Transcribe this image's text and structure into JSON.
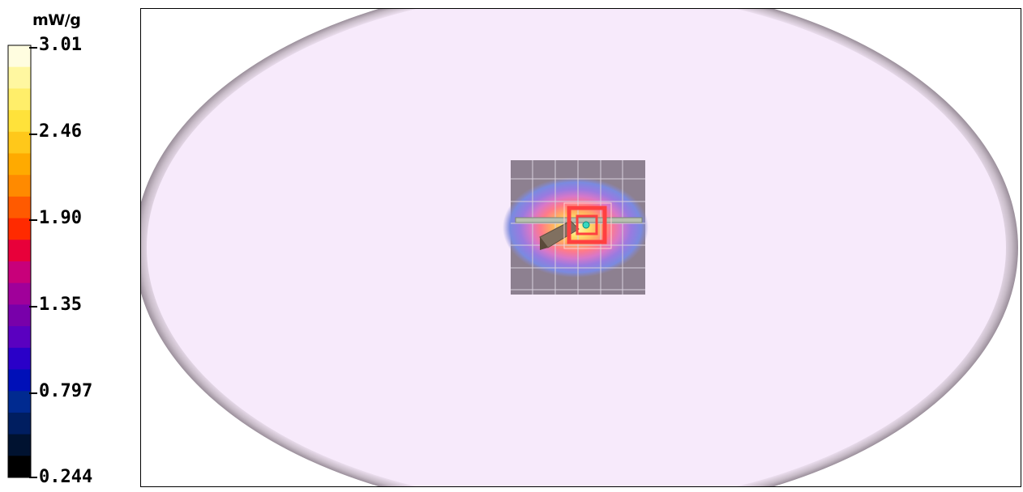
{
  "colorbar": {
    "unit": "mW/g",
    "ticks": [
      "3.01",
      "2.46",
      "1.90",
      "1.35",
      "0.797",
      "0.244"
    ],
    "scale_min": 0.244,
    "scale_max": 3.01,
    "bands": [
      "#fffde0",
      "#fff7a0",
      "#ffee6a",
      "#ffe23a",
      "#ffc81a",
      "#ffaa00",
      "#ff8a00",
      "#ff5a00",
      "#ff2a00",
      "#e8003a",
      "#c8007a",
      "#a0009a",
      "#7800aa",
      "#5a00c0",
      "#2a00c8",
      "#0010b8",
      "#002a90",
      "#001e60",
      "#001230",
      "#000000"
    ]
  },
  "view": {
    "phantom_color": "#f6e8fa",
    "phantom_edge_color": "#a89aa8",
    "grid_color": "#8a7e8a",
    "hotspot_marker_color": "#ff4040",
    "peak_marker_color": "#38d8c0"
  }
}
